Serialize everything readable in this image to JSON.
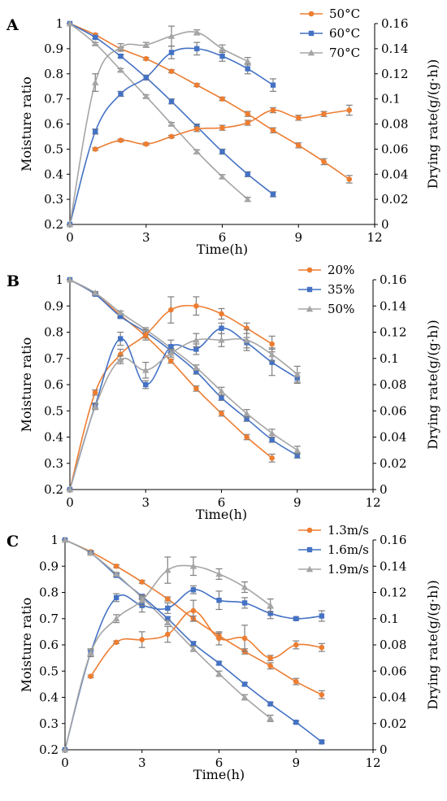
{
  "colors": {
    "orange": "#ED7D31",
    "blue": "#4472C4",
    "gray": "#A5A5A5",
    "error_bar": "#7F7F7F"
  },
  "chart_data": [
    {
      "type": "line",
      "panel": "A",
      "xlabel": "Time(h)",
      "ylabel_left": "Moisture ratio",
      "ylabel_right": "Drying rate(g/(g·h))",
      "xlim": [
        0,
        12
      ],
      "xticks": [
        "0",
        "3",
        "6",
        "9",
        "12"
      ],
      "ylim_left": [
        0.2,
        1
      ],
      "yticks_left": [
        "0.2",
        "0.3",
        "0.4",
        "0.5",
        "0.6",
        "0.7",
        "0.8",
        "0.9",
        "1"
      ],
      "ylim_right": [
        0,
        0.16
      ],
      "yticks_right": [
        "0",
        "0.02",
        "0.04",
        "0.06",
        "0.08",
        "0.1",
        "0.12",
        "0.14",
        "0.16"
      ],
      "legend_position": "top-right",
      "legend": [
        {
          "label": "50°C",
          "color": "#ED7D31",
          "marker": "circle"
        },
        {
          "label": "60°C",
          "color": "#4472C4",
          "marker": "square"
        },
        {
          "label": "70°C",
          "color": "#A5A5A5",
          "marker": "triangle"
        }
      ],
      "series": [
        {
          "name": "50°C",
          "kind": "moisture",
          "color": "#ED7D31",
          "marker": "circle",
          "x": [
            0,
            1,
            2,
            3,
            4,
            5,
            6,
            7,
            8,
            9,
            10,
            11
          ],
          "y": [
            1,
            0.955,
            0.9,
            0.86,
            0.81,
            0.755,
            0.7,
            0.64,
            0.575,
            0.515,
            0.45,
            0.38
          ],
          "err": [
            0,
            0.005,
            0.005,
            0.005,
            0.006,
            0.006,
            0.007,
            0.01,
            0.01,
            0.01,
            0.012,
            0.015
          ]
        },
        {
          "name": "60°C",
          "kind": "moisture",
          "color": "#4472C4",
          "marker": "square",
          "x": [
            0,
            1,
            2,
            3,
            4,
            5,
            6,
            7,
            8
          ],
          "y": [
            1,
            0.945,
            0.87,
            0.785,
            0.69,
            0.59,
            0.49,
            0.4,
            0.32
          ],
          "err": [
            0,
            0.005,
            0.006,
            0.007,
            0.01,
            0.01,
            0.01,
            0.01,
            0.01
          ]
        },
        {
          "name": "70°C",
          "kind": "moisture",
          "color": "#A5A5A5",
          "marker": "triangle",
          "x": [
            0,
            1,
            2,
            3,
            4,
            5,
            6,
            7
          ],
          "y": [
            1,
            0.92,
            0.815,
            0.71,
            0.6,
            0.49,
            0.39,
            0.3
          ],
          "err": [
            0,
            0.005,
            0.006,
            0.006,
            0.006,
            0.007,
            0.008,
            0.008
          ]
        },
        {
          "name": "50°C",
          "kind": "rate",
          "color": "#ED7D31",
          "marker": "circle",
          "x": [
            1,
            2,
            3,
            4,
            5,
            6,
            7,
            8,
            9,
            10,
            11
          ],
          "y": [
            0.06,
            0.067,
            0.064,
            0.07,
            0.076,
            0.077,
            0.081,
            0.091,
            0.085,
            0.088,
            0.091
          ],
          "err": [
            0.001,
            0.001,
            0.001,
            0.001,
            0.002,
            0.002,
            0.002,
            0.002,
            0.002,
            0.002,
            0.004
          ]
        },
        {
          "name": "60°C",
          "kind": "rate",
          "color": "#4472C4",
          "marker": "square",
          "x": [
            0,
            1,
            2,
            3,
            4,
            5,
            6,
            7,
            8
          ],
          "y": [
            0,
            0.074,
            0.104,
            0.117,
            0.137,
            0.14,
            0.134,
            0.124,
            0.111
          ],
          "err": [
            0,
            0.002,
            0.002,
            0.002,
            0.005,
            0.005,
            0.004,
            0.004,
            0.005
          ]
        },
        {
          "name": "70°C",
          "kind": "rate",
          "color": "#A5A5A5",
          "marker": "triangle",
          "x": [
            0,
            1,
            2,
            3,
            4,
            5,
            6,
            7
          ],
          "y": [
            0,
            0.113,
            0.141,
            0.143,
            0.15,
            0.153,
            0.14,
            0.13
          ],
          "err": [
            0,
            0.007,
            0.003,
            0.002,
            0.008,
            0.002,
            0.003,
            0.003
          ]
        }
      ]
    },
    {
      "type": "line",
      "panel": "B",
      "xlabel": "Time(h)",
      "ylabel_left": "Moisture ratio",
      "ylabel_right": "Drying rate(g/(g·h))",
      "xlim": [
        0,
        12
      ],
      "xticks": [
        "0",
        "3",
        "6",
        "9",
        "12"
      ],
      "ylim_left": [
        0.2,
        1
      ],
      "yticks_left": [
        "0.2",
        "0.3",
        "0.4",
        "0.5",
        "0.6",
        "0.7",
        "0.8",
        "0.9",
        "1"
      ],
      "ylim_right": [
        0,
        0.16
      ],
      "yticks_right": [
        "0",
        "0.02",
        "0.04",
        "0.06",
        "0.08",
        "0.1",
        "0.12",
        "0.14",
        "0.16"
      ],
      "legend_position": "top-right",
      "legend": [
        {
          "label": "20%",
          "color": "#ED7D31",
          "marker": "circle"
        },
        {
          "label": "35%",
          "color": "#4472C4",
          "marker": "square"
        },
        {
          "label": "50%",
          "color": "#A5A5A5",
          "marker": "triangle"
        }
      ],
      "series": [
        {
          "name": "20%",
          "kind": "moisture",
          "color": "#ED7D31",
          "marker": "circle",
          "x": [
            0,
            1,
            2,
            3,
            4,
            5,
            6,
            7,
            8
          ],
          "y": [
            1,
            0.945,
            0.865,
            0.785,
            0.69,
            0.585,
            0.49,
            0.4,
            0.32
          ],
          "err": [
            0,
            0.005,
            0.006,
            0.007,
            0.008,
            0.01,
            0.01,
            0.01,
            0.015
          ]
        },
        {
          "name": "35%",
          "kind": "moisture",
          "color": "#4472C4",
          "marker": "square",
          "x": [
            0,
            1,
            2,
            3,
            4,
            5,
            6,
            7,
            8,
            9
          ],
          "y": [
            1,
            0.945,
            0.86,
            0.8,
            0.73,
            0.65,
            0.55,
            0.47,
            0.39,
            0.33
          ],
          "err": [
            0,
            0.005,
            0.006,
            0.007,
            0.008,
            0.01,
            0.01,
            0.01,
            0.01,
            0.01
          ]
        },
        {
          "name": "50%",
          "kind": "moisture",
          "color": "#A5A5A5",
          "marker": "triangle",
          "x": [
            0,
            1,
            2,
            3,
            4,
            5,
            6,
            7,
            8,
            9
          ],
          "y": [
            1,
            0.95,
            0.875,
            0.81,
            0.74,
            0.665,
            0.575,
            0.49,
            0.415,
            0.35
          ],
          "err": [
            0,
            0.005,
            0.006,
            0.007,
            0.008,
            0.01,
            0.015,
            0.015,
            0.015,
            0.015
          ]
        },
        {
          "name": "20%",
          "kind": "rate",
          "color": "#ED7D31",
          "marker": "circle",
          "x": [
            0,
            1,
            2,
            3,
            4,
            5,
            6,
            7,
            8
          ],
          "y": [
            0,
            0.074,
            0.103,
            0.118,
            0.137,
            0.14,
            0.134,
            0.123,
            0.111
          ],
          "err": [
            0,
            0.002,
            0.004,
            0.004,
            0.01,
            0.007,
            0.004,
            0.004,
            0.006
          ]
        },
        {
          "name": "35%",
          "kind": "rate",
          "color": "#4472C4",
          "marker": "square",
          "x": [
            0,
            1,
            2,
            3,
            4,
            5,
            6,
            7,
            8,
            9
          ],
          "y": [
            0,
            0.064,
            0.115,
            0.08,
            0.109,
            0.107,
            0.123,
            0.112,
            0.097,
            0.085
          ],
          "err": [
            0,
            0.002,
            0.005,
            0.003,
            0.005,
            0.004,
            0.004,
            0.004,
            0.01,
            0.004
          ]
        },
        {
          "name": "50%",
          "kind": "rate",
          "color": "#A5A5A5",
          "marker": "triangle",
          "x": [
            0,
            1,
            2,
            3,
            4,
            5,
            6,
            7,
            8,
            9
          ],
          "y": [
            0,
            0.063,
            0.099,
            0.091,
            0.104,
            0.114,
            0.114,
            0.114,
            0.103,
            0.088
          ],
          "err": [
            0,
            0.002,
            0.003,
            0.006,
            0.003,
            0.005,
            0.005,
            0.008,
            0.005,
            0.006
          ]
        }
      ]
    },
    {
      "type": "line",
      "panel": "C",
      "xlabel": "Time(h)",
      "ylabel_left": "Moisture ratio",
      "ylabel_right": "Drying rate(g/(g·h))",
      "xlim": [
        0,
        12
      ],
      "xticks": [
        "0",
        "3",
        "6",
        "9",
        "12"
      ],
      "ylim_left": [
        0.2,
        1
      ],
      "yticks_left": [
        "0.2",
        "0.3",
        "0.4",
        "0.5",
        "0.6",
        "0.7",
        "0.8",
        "0.9",
        "1"
      ],
      "ylim_right": [
        0,
        0.16
      ],
      "yticks_right": [
        "0",
        "0.02",
        "0.04",
        "0.06",
        "0.08",
        "0.1",
        "0.12",
        "0.14",
        "0.16"
      ],
      "legend_position": "top-right",
      "legend": [
        {
          "label": "1.3m/s",
          "color": "#ED7D31",
          "marker": "circle"
        },
        {
          "label": "1.6m/s",
          "color": "#4472C4",
          "marker": "square"
        },
        {
          "label": "1.9m/s",
          "color": "#A5A5A5",
          "marker": "triangle"
        }
      ],
      "series": [
        {
          "name": "1.3m/s",
          "kind": "moisture",
          "color": "#ED7D31",
          "marker": "circle",
          "x": [
            0,
            1,
            2,
            3,
            4,
            5,
            6,
            7,
            8,
            9,
            10
          ],
          "y": [
            1,
            0.955,
            0.9,
            0.84,
            0.775,
            0.7,
            0.635,
            0.575,
            0.52,
            0.46,
            0.41
          ],
          "err": [
            0,
            0.005,
            0.006,
            0.006,
            0.008,
            0.01,
            0.01,
            0.01,
            0.012,
            0.012,
            0.015
          ]
        },
        {
          "name": "1.6m/s",
          "kind": "moisture",
          "color": "#4472C4",
          "marker": "square",
          "x": [
            0,
            1,
            2,
            3,
            4,
            5,
            6,
            7,
            8,
            9,
            10
          ],
          "y": [
            1,
            0.95,
            0.865,
            0.785,
            0.7,
            0.605,
            0.53,
            0.45,
            0.375,
            0.305,
            0.23
          ],
          "err": [
            0,
            0.005,
            0.006,
            0.006,
            0.007,
            0.007,
            0.006,
            0.006,
            0.006,
            0.005,
            0.005
          ]
        },
        {
          "name": "1.9m/s",
          "kind": "moisture",
          "color": "#A5A5A5",
          "marker": "triangle",
          "x": [
            0,
            1,
            2,
            3,
            4,
            5,
            6,
            7,
            8
          ],
          "y": [
            1,
            0.95,
            0.87,
            0.78,
            0.685,
            0.585,
            0.49,
            0.4,
            0.32
          ],
          "err": [
            0,
            0.005,
            0.006,
            0.006,
            0.008,
            0.01,
            0.01,
            0.01,
            0.012
          ]
        },
        {
          "name": "1.3m/s",
          "kind": "rate",
          "color": "#ED7D31",
          "marker": "circle",
          "x": [
            1,
            2,
            3,
            4,
            5,
            6,
            7,
            8,
            9,
            10
          ],
          "y": [
            0.056,
            0.082,
            0.084,
            0.088,
            0.106,
            0.085,
            0.085,
            0.07,
            0.08,
            0.078
          ],
          "err": [
            0.001,
            0.001,
            0.006,
            0.006,
            0.008,
            0.005,
            0.01,
            0.002,
            0.003,
            0.003
          ]
        },
        {
          "name": "1.6m/s",
          "kind": "rate",
          "color": "#4472C4",
          "marker": "square",
          "x": [
            0,
            1,
            2,
            3,
            4,
            5,
            6,
            7,
            8,
            9,
            10
          ],
          "y": [
            0,
            0.074,
            0.116,
            0.11,
            0.108,
            0.122,
            0.114,
            0.112,
            0.104,
            0.1,
            0.102
          ],
          "err": [
            0,
            0.002,
            0.003,
            0.005,
            0.004,
            0.003,
            0.007,
            0.004,
            0.004,
            0.001,
            0.004
          ]
        },
        {
          "name": "1.9m/s",
          "kind": "rate",
          "color": "#A5A5A5",
          "marker": "triangle",
          "x": [
            0,
            1,
            2,
            3,
            4,
            5,
            6,
            7,
            8
          ],
          "y": [
            0,
            0.074,
            0.1,
            0.114,
            0.137,
            0.14,
            0.134,
            0.124,
            0.11
          ],
          "err": [
            0,
            0.003,
            0.003,
            0.004,
            0.01,
            0.007,
            0.004,
            0.004,
            0.005
          ]
        }
      ]
    }
  ]
}
